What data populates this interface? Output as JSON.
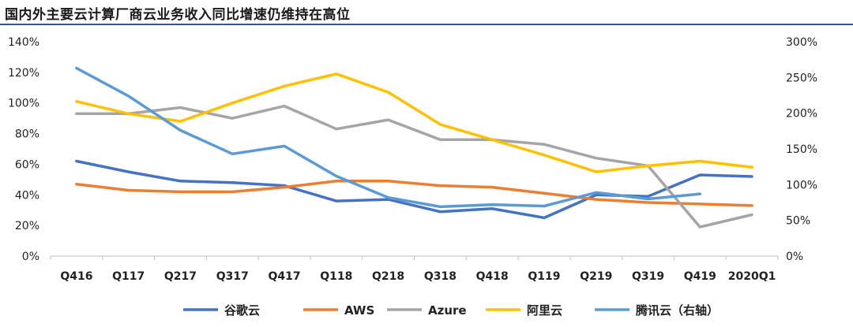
{
  "title": "国内外主要云计算厂商云业务收入同比增速仍维持在高位",
  "chart_data": {
    "type": "line",
    "title": "国内外主要云计算厂商云业务收入同比增速仍维持在高位",
    "categories": [
      "Q416",
      "Q117",
      "Q217",
      "Q317",
      "Q417",
      "Q118",
      "Q218",
      "Q318",
      "Q418",
      "Q119",
      "Q219",
      "Q319",
      "Q419",
      "2020Q1"
    ],
    "y_left": {
      "ticks": [
        "0%",
        "20%",
        "40%",
        "60%",
        "80%",
        "100%",
        "120%",
        "140%"
      ],
      "range": [
        0,
        140
      ]
    },
    "y_right": {
      "ticks": [
        "0%",
        "50%",
        "100%",
        "150%",
        "200%",
        "250%",
        "300%"
      ],
      "range": [
        0,
        300
      ]
    },
    "series": [
      {
        "name": "谷歌云",
        "axis": "left",
        "color": "#4472c4",
        "values": [
          62,
          55,
          49,
          48,
          46,
          36,
          37,
          29,
          31,
          25,
          40,
          39,
          53,
          52
        ]
      },
      {
        "name": "AWS",
        "axis": "left",
        "color": "#ed7d31",
        "values": [
          47,
          43,
          42,
          42,
          45,
          49,
          49,
          46,
          45,
          41,
          37,
          35,
          34,
          33
        ]
      },
      {
        "name": "Azure",
        "axis": "left",
        "color": "#a5a5a5",
        "values": [
          93,
          93,
          97,
          90,
          98,
          83,
          89,
          76,
          76,
          73,
          64,
          59,
          19,
          27
        ]
      },
      {
        "name": "阿里云",
        "axis": "left",
        "color": "#ffc000",
        "values": [
          101,
          93,
          88,
          100,
          111,
          119,
          107,
          86,
          76,
          66,
          55,
          59,
          62,
          58
        ]
      },
      {
        "name": "腾讯云（右轴）",
        "axis": "right",
        "color": "#5b9bd5",
        "values": [
          263,
          224,
          176,
          143,
          154,
          112,
          82,
          69,
          72,
          70,
          89,
          80,
          87,
          null
        ]
      }
    ],
    "legend": "bottom",
    "grid": false
  }
}
